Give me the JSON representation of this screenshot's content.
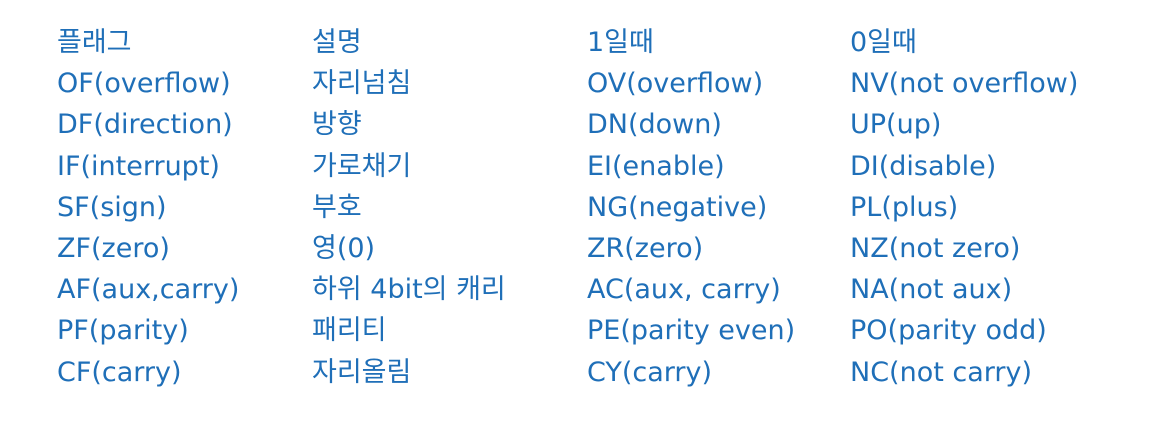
{
  "header": {
    "flag": "플래그",
    "description": "설명",
    "when_one": "1일때",
    "when_zero": "0일때"
  },
  "rows": [
    {
      "flag": "OF(overflow)",
      "description": "자리넘침",
      "when_one": "OV(overflow)",
      "when_zero": "NV(not overflow)"
    },
    {
      "flag": "DF(direction)",
      "description": "방향",
      "when_one": "DN(down)",
      "when_zero": "UP(up)"
    },
    {
      "flag": "IF(interrupt)",
      "description": "가로채기",
      "when_one": "EI(enable)",
      "when_zero": "DI(disable)"
    },
    {
      "flag": "SF(sign)",
      "description": "부호",
      "when_one": "NG(negative)",
      "when_zero": "PL(plus)"
    },
    {
      "flag": "ZF(zero)",
      "description": "영(0)",
      "when_one": "ZR(zero)",
      "when_zero": "NZ(not zero)"
    },
    {
      "flag": "AF(aux,carry)",
      "description": "하위 4bit의 캐리",
      "when_one": "AC(aux, carry)",
      "when_zero": "NA(not aux)"
    },
    {
      "flag": "PF(parity)",
      "description": "패리티",
      "when_one": "PE(parity even)",
      "when_zero": "PO(parity odd)"
    },
    {
      "flag": "CF(carry)",
      "description": "자리올림",
      "when_one": "CY(carry)",
      "when_zero": "NC(not carry)"
    }
  ],
  "colors": {
    "text": "#1f6fb8",
    "background": "#ffffff"
  }
}
